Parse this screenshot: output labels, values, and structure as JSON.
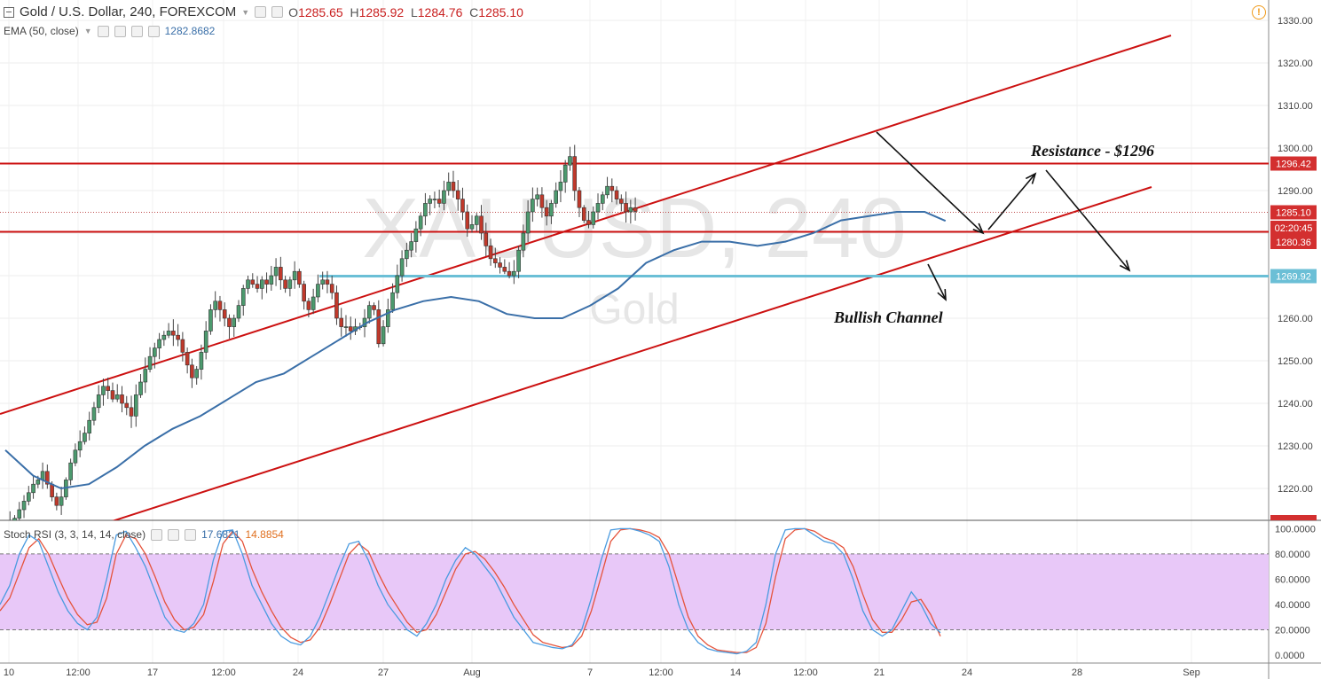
{
  "header": {
    "symbol_title": "Gold / U.S. Dollar, 240, FOREXCOM",
    "ohlc": {
      "o_label": "O",
      "o": "1285.65",
      "h_label": "H",
      "h": "1285.92",
      "l_label": "L",
      "l": "1284.76",
      "c_label": "C",
      "c": "1285.10"
    },
    "ema_label": "EMA (50, close)",
    "ema_value": "1282.8682",
    "stoch_label": "Stoch RSI (3, 3, 14, 14, close)",
    "stoch_k": "17.6821",
    "stoch_d": "14.8854"
  },
  "watermark": {
    "symbol": "XAUUSD, 240",
    "name": "Gold"
  },
  "annotations": {
    "resistance": "Resistance - $1296",
    "channel": "Bullish Channel"
  },
  "colors": {
    "up": "#4c9a6e",
    "down": "#c0392b",
    "ema": "#3a6fa8",
    "channel": "#cc1111",
    "support": "#6bbfd6",
    "stoch_k": "#4a9be0",
    "stoch_d": "#e5533b",
    "stoch_band": "#e8c8f8"
  },
  "chart_data": [
    {
      "type": "candlestick",
      "title": "Gold / U.S. Dollar, 240, FOREXCOM",
      "ylim": [
        1210,
        1335
      ],
      "y_ticks": [
        "1220.00",
        "1230.00",
        "1240.00",
        "1250.00",
        "1260.00",
        "1270.00",
        "1280.00",
        "1290.00",
        "1300.00",
        "1310.00",
        "1320.00",
        "1330.00"
      ],
      "x_ticks": [
        "10",
        "12:00",
        "17",
        "12:00",
        "24",
        "27",
        "Aug",
        "7",
        "12:00",
        "14",
        "12:00",
        "21",
        "24",
        "28",
        "Sep"
      ],
      "price_labels": [
        {
          "text": "1296.42",
          "value": 1296.42,
          "color": "#d32f2f"
        },
        {
          "text": "1285.10",
          "value": 1285.1,
          "color": "#d32f2f"
        },
        {
          "text": "02:20:45",
          "value": 1282.4,
          "color": "#d32f2f"
        },
        {
          "text": "1280.36",
          "value": 1280.36,
          "color": "#d32f2f"
        },
        {
          "text": "1269.92",
          "value": 1269.92,
          "color": "#6bbfd6"
        }
      ],
      "horizontal_lines": [
        {
          "value": 1296.42,
          "kind": "resistance"
        },
        {
          "value": 1280.36,
          "kind": "support"
        },
        {
          "value": 1269.92,
          "kind": "level"
        }
      ],
      "close_path": [
        [
          0,
          1211
        ],
        [
          2,
          1212
        ],
        [
          4,
          1213
        ],
        [
          6,
          1215
        ],
        [
          8,
          1217
        ],
        [
          10,
          1219
        ],
        [
          12,
          1221
        ],
        [
          14,
          1222
        ],
        [
          16,
          1224
        ],
        [
          18,
          1221
        ],
        [
          20,
          1218
        ],
        [
          22,
          1216
        ],
        [
          24,
          1218
        ],
        [
          26,
          1222
        ],
        [
          28,
          1226
        ],
        [
          30,
          1229
        ],
        [
          32,
          1231
        ],
        [
          34,
          1233
        ],
        [
          36,
          1236
        ],
        [
          38,
          1239
        ],
        [
          40,
          1242
        ],
        [
          42,
          1244
        ],
        [
          44,
          1243
        ],
        [
          46,
          1241
        ],
        [
          48,
          1242
        ],
        [
          50,
          1240
        ],
        [
          52,
          1239
        ],
        [
          54,
          1237
        ],
        [
          56,
          1242
        ],
        [
          58,
          1245
        ],
        [
          60,
          1248
        ],
        [
          62,
          1251
        ],
        [
          64,
          1253
        ],
        [
          66,
          1255
        ],
        [
          68,
          1256
        ],
        [
          70,
          1257
        ],
        [
          72,
          1256
        ],
        [
          74,
          1255
        ],
        [
          76,
          1252
        ],
        [
          78,
          1249
        ],
        [
          80,
          1246
        ],
        [
          82,
          1248
        ],
        [
          84,
          1252
        ],
        [
          86,
          1257
        ],
        [
          88,
          1262
        ],
        [
          90,
          1264
        ],
        [
          92,
          1262
        ],
        [
          94,
          1260
        ],
        [
          96,
          1258
        ],
        [
          98,
          1260
        ],
        [
          100,
          1263
        ],
        [
          102,
          1267
        ],
        [
          104,
          1269
        ],
        [
          106,
          1268
        ],
        [
          108,
          1267
        ],
        [
          110,
          1269
        ],
        [
          112,
          1268
        ],
        [
          114,
          1270
        ],
        [
          116,
          1272
        ],
        [
          118,
          1269
        ],
        [
          120,
          1267
        ],
        [
          122,
          1269
        ],
        [
          124,
          1271
        ],
        [
          126,
          1268
        ],
        [
          128,
          1264
        ],
        [
          130,
          1262
        ],
        [
          132,
          1265
        ],
        [
          134,
          1268
        ],
        [
          136,
          1269
        ],
        [
          138,
          1268
        ],
        [
          140,
          1266
        ],
        [
          142,
          1260
        ],
        [
          144,
          1258
        ],
        [
          146,
          1258
        ],
        [
          148,
          1257
        ],
        [
          150,
          1258
        ],
        [
          152,
          1258
        ],
        [
          154,
          1260
        ],
        [
          156,
          1263
        ],
        [
          158,
          1262
        ],
        [
          160,
          1254
        ],
        [
          162,
          1258
        ],
        [
          164,
          1262
        ],
        [
          166,
          1266
        ],
        [
          168,
          1270
        ],
        [
          170,
          1274
        ],
        [
          172,
          1276
        ],
        [
          174,
          1278
        ],
        [
          176,
          1281
        ],
        [
          178,
          1284
        ],
        [
          180,
          1287
        ],
        [
          182,
          1288
        ],
        [
          184,
          1288
        ],
        [
          186,
          1287
        ],
        [
          188,
          1290
        ],
        [
          190,
          1292
        ],
        [
          192,
          1290
        ],
        [
          194,
          1288
        ],
        [
          196,
          1285
        ],
        [
          198,
          1281
        ],
        [
          200,
          1282
        ],
        [
          202,
          1284
        ],
        [
          204,
          1280
        ],
        [
          206,
          1277
        ],
        [
          208,
          1274
        ],
        [
          210,
          1273
        ],
        [
          212,
          1272
        ],
        [
          214,
          1271
        ],
        [
          216,
          1270
        ],
        [
          218,
          1271
        ],
        [
          220,
          1276
        ],
        [
          222,
          1280
        ],
        [
          224,
          1285
        ],
        [
          226,
          1288
        ],
        [
          228,
          1289
        ],
        [
          230,
          1286
        ],
        [
          232,
          1284
        ],
        [
          234,
          1287
        ],
        [
          236,
          1290
        ],
        [
          238,
          1292
        ],
        [
          240,
          1296
        ],
        [
          242,
          1298
        ],
        [
          244,
          1290
        ],
        [
          246,
          1286
        ],
        [
          248,
          1283
        ],
        [
          250,
          1282
        ],
        [
          252,
          1285
        ],
        [
          254,
          1287
        ],
        [
          256,
          1289
        ],
        [
          258,
          1291
        ],
        [
          260,
          1290
        ],
        [
          262,
          1288
        ],
        [
          264,
          1287
        ],
        [
          266,
          1285
        ],
        [
          268,
          1286
        ],
        [
          270,
          1285.1
        ]
      ],
      "ema50": [
        [
          0,
          1229
        ],
        [
          8,
          1223
        ],
        [
          16,
          1220
        ],
        [
          24,
          1221
        ],
        [
          32,
          1225
        ],
        [
          40,
          1230
        ],
        [
          48,
          1234
        ],
        [
          56,
          1237
        ],
        [
          64,
          1241
        ],
        [
          72,
          1245
        ],
        [
          80,
          1247
        ],
        [
          88,
          1251
        ],
        [
          96,
          1255
        ],
        [
          104,
          1259
        ],
        [
          112,
          1262
        ],
        [
          120,
          1264
        ],
        [
          128,
          1265
        ],
        [
          136,
          1264
        ],
        [
          144,
          1261
        ],
        [
          152,
          1260
        ],
        [
          160,
          1260
        ],
        [
          168,
          1263
        ],
        [
          176,
          1267
        ],
        [
          184,
          1273
        ],
        [
          192,
          1276
        ],
        [
          200,
          1278
        ],
        [
          208,
          1278
        ],
        [
          216,
          1277
        ],
        [
          224,
          1278
        ],
        [
          232,
          1280
        ],
        [
          240,
          1283
        ],
        [
          248,
          1284
        ],
        [
          256,
          1285
        ],
        [
          264,
          1285
        ],
        [
          270,
          1282.87
        ]
      ],
      "channel_upper": {
        "from": [
          0,
          1238
        ],
        "to": [
          300,
          1325
        ]
      },
      "channel_lower": {
        "from": [
          30,
          1207
        ],
        "to": [
          300,
          1290
        ]
      },
      "arrows": [
        {
          "from": [
            238,
            1302
          ],
          "to": [
            266,
            1280
          ]
        },
        {
          "from": [
            268,
            1281
          ],
          "to": [
            282,
            1293
          ]
        },
        {
          "from": [
            284,
            1294
          ],
          "to": [
            306,
            1270
          ]
        },
        {
          "from": [
            252,
            1272
          ],
          "to": [
            258,
            1264
          ]
        }
      ]
    },
    {
      "type": "line",
      "title": "Stoch RSI (3, 3, 14, 14, close)",
      "ylim": [
        0,
        100
      ],
      "y_ticks": [
        "0.0000",
        "20.0000",
        "40.0000",
        "60.0000",
        "80.0000",
        "100.0000"
      ],
      "band": [
        20,
        80
      ],
      "series": [
        {
          "name": "K",
          "values": [
            40,
            55,
            80,
            95,
            90,
            70,
            50,
            35,
            25,
            20,
            30,
            60,
            95,
            98,
            85,
            70,
            50,
            30,
            20,
            18,
            25,
            40,
            75,
            98,
            99,
            80,
            55,
            40,
            25,
            15,
            10,
            8,
            15,
            30,
            50,
            70,
            88,
            90,
            75,
            55,
            40,
            30,
            20,
            15,
            25,
            40,
            60,
            75,
            85,
            80,
            70,
            60,
            45,
            30,
            20,
            10,
            8,
            6,
            5,
            8,
            20,
            45,
            75,
            99,
            100,
            100,
            98,
            95,
            90,
            70,
            40,
            20,
            10,
            5,
            3,
            2,
            1,
            3,
            10,
            40,
            80,
            99,
            100,
            100,
            95,
            90,
            88,
            80,
            60,
            35,
            20,
            15,
            20,
            35,
            50,
            40,
            25,
            17.68
          ]
        },
        {
          "name": "D",
          "values": [
            35,
            45,
            65,
            85,
            92,
            80,
            62,
            45,
            32,
            24,
            26,
            45,
            80,
            95,
            92,
            80,
            62,
            42,
            28,
            20,
            22,
            32,
            58,
            88,
            98,
            90,
            68,
            50,
            35,
            22,
            14,
            10,
            12,
            22,
            40,
            60,
            80,
            88,
            82,
            65,
            50,
            38,
            26,
            18,
            20,
            32,
            50,
            68,
            80,
            82,
            76,
            66,
            54,
            40,
            28,
            16,
            10,
            8,
            6,
            7,
            15,
            35,
            62,
            90,
            99,
            100,
            99,
            97,
            93,
            80,
            55,
            30,
            15,
            8,
            4,
            3,
            2,
            2,
            6,
            25,
            62,
            92,
            99,
            100,
            98,
            93,
            90,
            85,
            70,
            48,
            28,
            18,
            18,
            28,
            42,
            44,
            32,
            14.89
          ]
        }
      ]
    }
  ]
}
